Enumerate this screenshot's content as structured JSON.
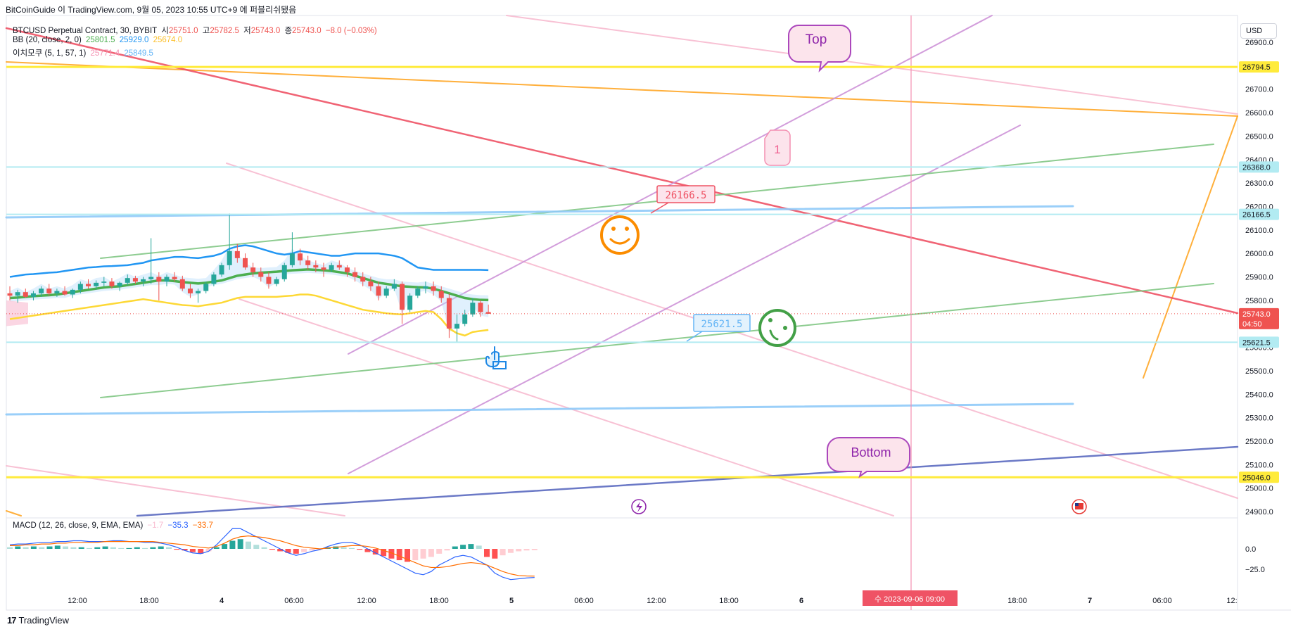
{
  "header": {
    "title": "BitCoinGuide 이 TradingView.com, 9월 05, 2023 10:55 UTC+9 에 퍼블리쉬됐음"
  },
  "legend": {
    "symbol": "BTCUSD Perpetual Contract, 30, BYBIT",
    "o_label": "시",
    "o_value": "25751.0",
    "h_label": "고",
    "h_value": "25782.5",
    "l_label": "저",
    "l_value": "25743.0",
    "c_label": "종",
    "c_value": "25743.0",
    "change": "−8.0 (−0.03%)",
    "bb_label": "BB (20, close, 2, 0)",
    "bb_basis": "25801.5",
    "bb_upper": "25929.0",
    "bb_lower": "25674.0",
    "ichimoku_label": "이치모쿠 (5, 1, 57, 1)",
    "ichimoku_a": "25771.4",
    "ichimoku_b": "25849.5",
    "macd_label": "MACD (12, 26, close, 9, EMA, EMA)",
    "macd_hist": "−1.7",
    "macd_line": "−35.3",
    "macd_signal": "−33.7"
  },
  "currency": "USD",
  "footer": {
    "brand": "TradingView"
  },
  "colors": {
    "up": "#26a69a",
    "down": "#ef5350",
    "bb_upper": "#2196f3",
    "bb_basis": "#4caf50",
    "bb_lower": "#ffeb3b",
    "macd": "#2962ff",
    "signal": "#ff6d00",
    "pink": "#f8bbd0",
    "purple": "#ce93d8",
    "yellow": "#ffeb3b",
    "orange": "#ffa726",
    "red": "#ef5365",
    "green": "#81c784",
    "blue": "#90caf9",
    "navy": "#5c6bc0"
  },
  "annotations": {
    "top": "Top",
    "bottom": "Bottom",
    "one": "1",
    "price_callout_1": "26166.5",
    "price_callout_2": "25621.5",
    "smile_icon": "smiley-face-icon",
    "confused_icon": "confused-face-icon",
    "hand_icon": "pointing-hand-icon",
    "lightning_icon": "lightning-event-icon",
    "flag_icon": "us-flag-event-icon"
  },
  "chart_data": {
    "type": "line",
    "title": "BTCUSD Perpetual Contract, 30, BYBIT",
    "y_axis": {
      "ticks": [
        "26900.0",
        "26800.0",
        "26700.0",
        "26600.0",
        "26500.0",
        "26400.0",
        "26300.0",
        "26200.0",
        "26100.0",
        "26000.0",
        "25900.0",
        "25800.0",
        "25700.0",
        "25600.0",
        "25500.0",
        "25400.0",
        "25300.0",
        "25200.0",
        "25100.0",
        "25000.0",
        "24900.0"
      ],
      "range": [
        24880,
        26940
      ]
    },
    "x_axis": {
      "ticks": [
        "12:00",
        "18:00",
        "4",
        "06:00",
        "12:00",
        "18:00",
        "5",
        "06:00",
        "12:00",
        "18:00",
        "6",
        "09:00",
        "18:00",
        "7",
        "06:00",
        "12:"
      ]
    },
    "price_labels": [
      {
        "value": "26794.5",
        "bg": "#ffeb3b",
        "fg": "#131722"
      },
      {
        "value": "26368.0",
        "bg": "#b2ebf2",
        "fg": "#131722"
      },
      {
        "value": "26166.5",
        "bg": "#b2ebf2",
        "fg": "#131722"
      },
      {
        "value": "25743.0",
        "bg": "#ef5350",
        "fg": "#ffffff",
        "sub": "04:50"
      },
      {
        "value": "25621.5",
        "bg": "#b2ebf2",
        "fg": "#131722"
      },
      {
        "value": "25046.0",
        "bg": "#ffeb3b",
        "fg": "#131722"
      }
    ],
    "horizontal_lines": [
      {
        "price": 26794.5,
        "color": "#ffeb3b"
      },
      {
        "price": 26368.0,
        "color": "#b2ebf2"
      },
      {
        "price": 26166.5,
        "color": "#b2ebf2"
      },
      {
        "price": 25621.5,
        "color": "#b2ebf2"
      },
      {
        "price": 25046.0,
        "color": "#ffeb3b"
      }
    ],
    "current_price": 25743.0,
    "date_label": "수 2023-09-06   09:00",
    "macd_axis": {
      "ticks": [
        "0.0",
        "−25.0"
      ]
    },
    "candles": [
      [
        25830,
        25860,
        25800,
        25820
      ],
      [
        25820,
        25845,
        25790,
        25835
      ],
      [
        25835,
        25850,
        25810,
        25815
      ],
      [
        25815,
        25840,
        25800,
        25830
      ],
      [
        25830,
        25860,
        25815,
        25850
      ],
      [
        25850,
        25870,
        25820,
        25830
      ],
      [
        25830,
        25850,
        25815,
        25840
      ],
      [
        25840,
        25860,
        25820,
        25825
      ],
      [
        25825,
        25850,
        25810,
        25845
      ],
      [
        25845,
        25880,
        25830,
        25870
      ],
      [
        25870,
        25890,
        25850,
        25860
      ],
      [
        25860,
        25885,
        25845,
        25875
      ],
      [
        25875,
        25900,
        25860,
        25880
      ],
      [
        25880,
        25895,
        25850,
        25860
      ],
      [
        25860,
        25880,
        25840,
        25875
      ],
      [
        25875,
        25910,
        25865,
        25895
      ],
      [
        25895,
        25905,
        25870,
        25880
      ],
      [
        25880,
        25900,
        25860,
        25890
      ],
      [
        25890,
        26065,
        25870,
        25900
      ],
      [
        25900,
        25920,
        25800,
        25880
      ],
      [
        25880,
        25910,
        25860,
        25900
      ],
      [
        25900,
        25920,
        25880,
        25890
      ],
      [
        25890,
        25905,
        25840,
        25850
      ],
      [
        25850,
        25870,
        25810,
        25830
      ],
      [
        25830,
        25850,
        25790,
        25840
      ],
      [
        25840,
        25880,
        25830,
        25870
      ],
      [
        25870,
        25920,
        25860,
        25910
      ],
      [
        25910,
        25960,
        25900,
        25950
      ],
      [
        25950,
        26170,
        25930,
        26010
      ],
      [
        26010,
        26040,
        25960,
        25980
      ],
      [
        25980,
        26000,
        25930,
        25940
      ],
      [
        25940,
        25960,
        25900,
        25920
      ],
      [
        25920,
        25940,
        25880,
        25900
      ],
      [
        25900,
        25920,
        25850,
        25870
      ],
      [
        25870,
        25900,
        25860,
        25890
      ],
      [
        25890,
        25960,
        25880,
        25950
      ],
      [
        25950,
        26090,
        25940,
        26000
      ],
      [
        26000,
        26020,
        25950,
        25970
      ],
      [
        25970,
        25990,
        25930,
        25950
      ],
      [
        25950,
        25970,
        25920,
        25940
      ],
      [
        25940,
        25960,
        25900,
        25930
      ],
      [
        25930,
        25960,
        25920,
        25950
      ],
      [
        25950,
        25970,
        25930,
        25940
      ],
      [
        25940,
        25950,
        25900,
        25920
      ],
      [
        25920,
        25940,
        25880,
        25900
      ],
      [
        25900,
        25920,
        25860,
        25880
      ],
      [
        25880,
        25900,
        25840,
        25860
      ],
      [
        25860,
        25880,
        25800,
        25820
      ],
      [
        25820,
        25860,
        25810,
        25850
      ],
      [
        25850,
        25890,
        25840,
        25870
      ],
      [
        25870,
        25880,
        25700,
        25760
      ],
      [
        25760,
        25830,
        25750,
        25820
      ],
      [
        25820,
        25860,
        25810,
        25850
      ],
      [
        25850,
        25880,
        25830,
        25860
      ],
      [
        25860,
        25880,
        25820,
        25840
      ],
      [
        25840,
        25860,
        25790,
        25810
      ],
      [
        25810,
        25830,
        25640,
        25680
      ],
      [
        25680,
        25740,
        25620,
        25700
      ],
      [
        25700,
        25760,
        25690,
        25740
      ],
      [
        25740,
        25810,
        25730,
        25790
      ],
      [
        25790,
        25800,
        25730,
        25750
      ],
      [
        25750,
        25782,
        25743,
        25743
      ]
    ],
    "bb_upper": [
      25900,
      25905,
      25910,
      25912,
      25915,
      25918,
      25920,
      25925,
      25930,
      25935,
      25940,
      25942,
      25945,
      25946,
      25948,
      25950,
      25955,
      25960,
      25970,
      25975,
      25980,
      25985,
      25985,
      25982,
      25980,
      25985,
      25990,
      26000,
      26020,
      26030,
      26035,
      26030,
      26020,
      26010,
      26000,
      25995,
      26000,
      26010,
      26005,
      26000,
      25995,
      25990,
      25990,
      25995,
      26000,
      26000,
      26000,
      26000,
      25995,
      25990,
      25980,
      25960,
      25940,
      25935,
      25930,
      25930,
      25930,
      25930,
      25930,
      25930,
      25930,
      25929
    ],
    "bb_basis": [
      25810,
      25812,
      25815,
      25818,
      25820,
      25822,
      25825,
      25830,
      25835,
      25840,
      25845,
      25850,
      25855,
      25858,
      25860,
      25865,
      25870,
      25875,
      25880,
      25885,
      25885,
      25882,
      25878,
      25875,
      25872,
      25875,
      25880,
      25885,
      25895,
      25905,
      25910,
      25915,
      25918,
      25920,
      25922,
      25925,
      25928,
      25930,
      25932,
      25930,
      25928,
      25925,
      25920,
      25915,
      25905,
      25895,
      25885,
      25875,
      25870,
      25865,
      25860,
      25858,
      25856,
      25855,
      25850,
      25840,
      25830,
      25820,
      25810,
      25805,
      25802,
      25801.5
    ],
    "bb_lower": [
      25720,
      25725,
      25730,
      25735,
      25740,
      25745,
      25750,
      25755,
      25760,
      25765,
      25770,
      25775,
      25780,
      25785,
      25790,
      25795,
      25800,
      25805,
      25800,
      25795,
      25790,
      25785,
      25780,
      25778,
      25775,
      25780,
      25785,
      25790,
      25800,
      25810,
      25815,
      25815,
      25815,
      25815,
      25815,
      25818,
      25820,
      25825,
      25825,
      25820,
      25810,
      25800,
      25790,
      25780,
      25770,
      25760,
      25755,
      25750,
      25745,
      25742,
      25740,
      25745,
      25750,
      25755,
      25750,
      25720,
      25680,
      25660,
      25650,
      25665,
      25670,
      25674
    ],
    "macd_hist": [
      2,
      3,
      2,
      3,
      2,
      3,
      4,
      3,
      2,
      2,
      1,
      2,
      3,
      2,
      1,
      1,
      2,
      1,
      2,
      3,
      2,
      -1,
      -2,
      -4,
      -6,
      -3,
      2,
      6,
      10,
      12,
      9,
      5,
      2,
      -1,
      -3,
      -5,
      -6,
      -4,
      -2,
      -1,
      2,
      3,
      2,
      1,
      -1,
      -4,
      -7,
      -9,
      -12,
      -14,
      -16,
      -14,
      -12,
      -10,
      -6,
      -2,
      3,
      5,
      6,
      4,
      -10,
      -12,
      -8,
      -5,
      -3,
      -2,
      -1.7
    ],
    "macd_line": [
      5,
      6,
      6,
      7,
      8,
      8,
      9,
      9,
      10,
      10,
      9,
      9,
      9,
      10,
      10,
      9,
      9,
      8,
      8,
      7,
      5,
      2,
      -2,
      -5,
      -6,
      -3,
      5,
      15,
      25,
      25,
      20,
      15,
      10,
      5,
      0,
      -5,
      -8,
      -6,
      -3,
      -1,
      3,
      6,
      8,
      8,
      5,
      0,
      -5,
      -10,
      -15,
      -20,
      -25,
      -30,
      -32,
      -28,
      -20,
      -15,
      -10,
      -8,
      -10,
      -15,
      -20,
      -30,
      -35,
      -38,
      -37,
      -36,
      -35.3
    ],
    "macd_signal": [
      4,
      4,
      5,
      5,
      6,
      6,
      7,
      7,
      8,
      8,
      8,
      8,
      9,
      9,
      9,
      9,
      9,
      9,
      9,
      8,
      7,
      6,
      5,
      3,
      2,
      1,
      3,
      7,
      12,
      15,
      16,
      15,
      14,
      12,
      10,
      7,
      4,
      2,
      1,
      0,
      1,
      2,
      3,
      4,
      4,
      3,
      1,
      -2,
      -5,
      -9,
      -13,
      -17,
      -21,
      -23,
      -23,
      -22,
      -20,
      -18,
      -17,
      -18,
      -20,
      -24,
      -28,
      -31,
      -33,
      -33.5,
      -33.7
    ]
  }
}
